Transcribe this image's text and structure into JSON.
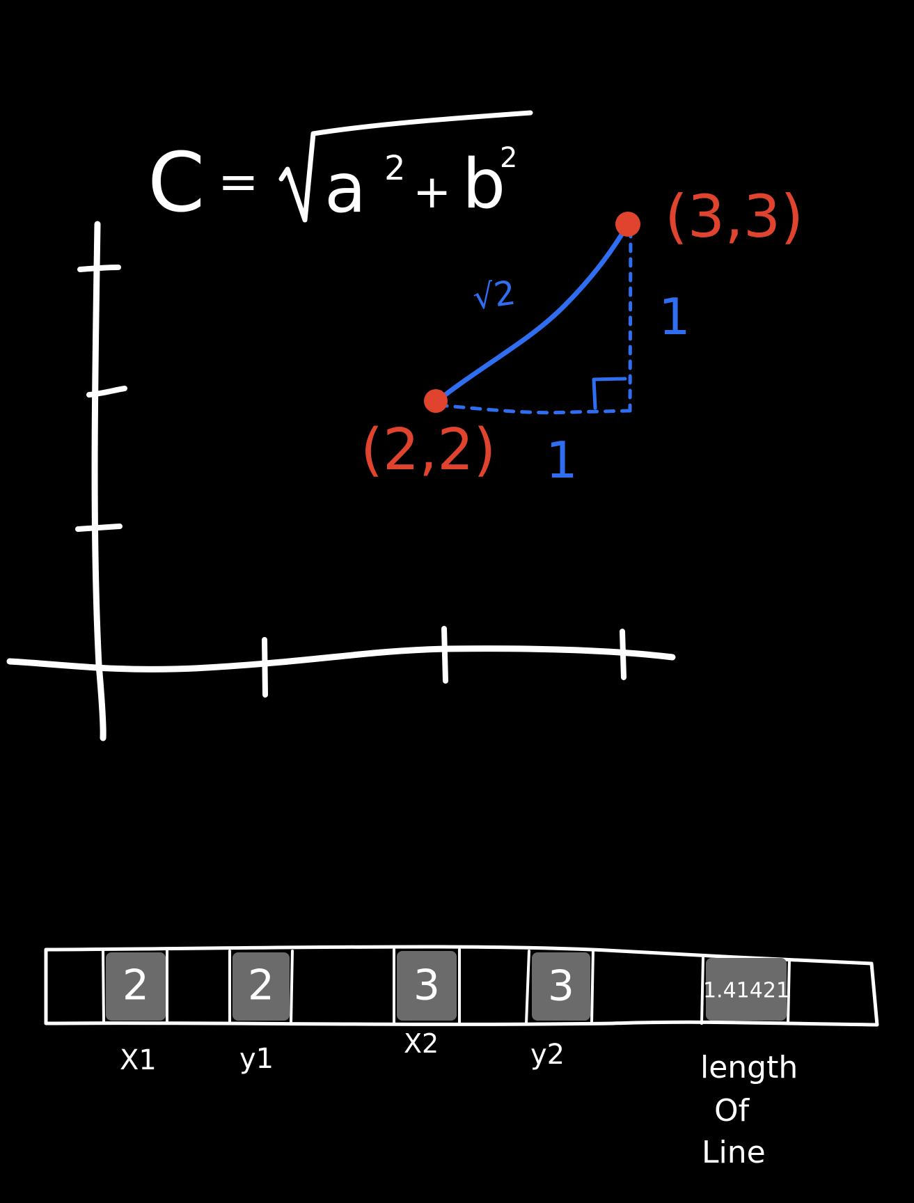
{
  "formula": {
    "lhs": "C",
    "equals": "=",
    "a": "a",
    "plus": "+",
    "b": "b",
    "exp": "2"
  },
  "points": {
    "p1": "(2,2)",
    "p2": "(3,3)"
  },
  "triangle": {
    "hypotenuse": "√2",
    "horizontal_leg": "1",
    "vertical_leg": "1"
  },
  "memory_strip": {
    "cells": [
      {
        "value": "2",
        "label": "X1"
      },
      {
        "value": "2",
        "label": "y1"
      },
      {
        "value": "3",
        "label": "X2"
      },
      {
        "value": "3",
        "label": "y2"
      },
      {
        "value": "1.41421",
        "label_lines": [
          "length",
          "Of",
          "Line"
        ]
      }
    ]
  },
  "colors": {
    "background": "#000000",
    "ink": "#ffffff",
    "point": "#e0442f",
    "line": "#2f6ef0",
    "cell": "#6b6b6b"
  }
}
